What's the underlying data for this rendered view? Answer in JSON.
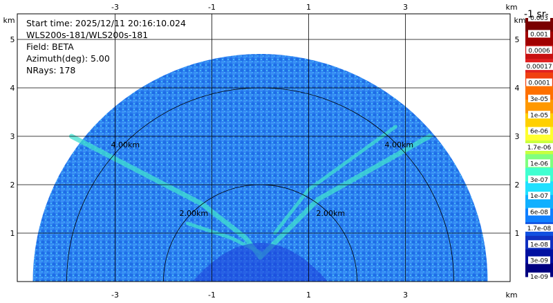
{
  "info": {
    "start_time": "Start time: 2025/12/11 20:16:10.024",
    "instrument": "WLS200s-181/WLS200s-181",
    "field": "Field: BETA",
    "azimuth": "Azimuth(deg): 5.00",
    "nrays": "NRays: 178"
  },
  "chart_data": {
    "type": "heatmap",
    "subtype": "rhi-polar-sector",
    "x_unit": "km",
    "y_unit": "km",
    "xlim": [
      -5.0,
      5.0
    ],
    "ylim": [
      0,
      5.5
    ],
    "x_ticks": [
      "-3",
      "-1",
      "1",
      "3"
    ],
    "y_ticks": [
      "1",
      "2",
      "3",
      "4",
      "5"
    ],
    "x_tick_values": [
      -3,
      -1,
      1,
      3
    ],
    "y_tick_values": [
      1,
      2,
      3,
      4,
      5
    ],
    "unit_label": "km",
    "range_rings": [
      {
        "radius_km": 2.0,
        "label": "2.00km"
      },
      {
        "radius_km": 4.0,
        "label": "4.00km"
      }
    ],
    "max_range_km": 4.7,
    "colorbar": {
      "title": "-1 sr-",
      "labels": [
        "0.003",
        "0.001",
        "0.0006",
        "0.00017",
        "0.0001",
        "3e-05",
        "1e-05",
        "6e-06",
        "1.7e-06",
        "1e-06",
        "3e-07",
        "1e-07",
        "6e-08",
        "1.7e-08",
        "1e-08",
        "3e-09",
        "1e-09"
      ],
      "colors": [
        "#7a0000",
        "#a00000",
        "#c81010",
        "#e02020",
        "#f04010",
        "#ff7000",
        "#ff9800",
        "#ffd000",
        "#ffff30",
        "#c8ff40",
        "#80ff80",
        "#40ffd0",
        "#20e0ff",
        "#10b0ff",
        "#1080ff",
        "#1050e0",
        "#1030c0",
        "#0010a0",
        "#000080"
      ]
    }
  },
  "colors": {
    "background_field": "#2a7ef0",
    "plume": "#40e0d0",
    "near_field": "#1c3cd8"
  }
}
